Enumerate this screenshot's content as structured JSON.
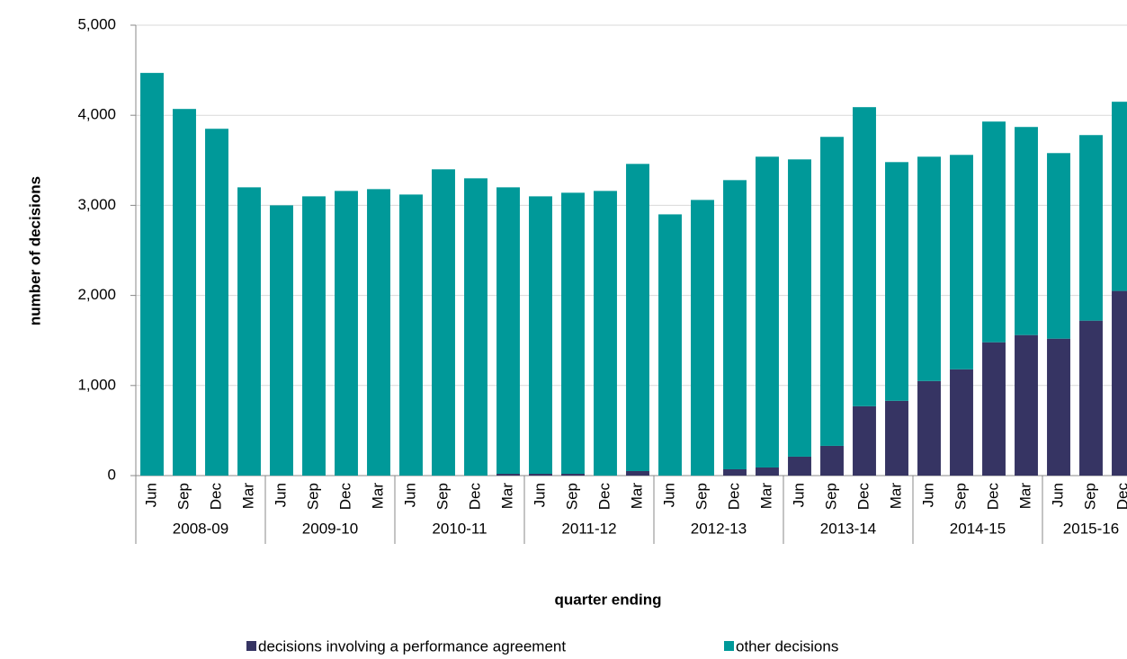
{
  "chart_data": {
    "type": "stacked_bar",
    "x_label": "quarter ending",
    "y_label": "number of decisions",
    "groups": [
      {
        "label": "2008-09",
        "categories": [
          "Jun",
          "Sep",
          "Dec",
          "Mar"
        ]
      },
      {
        "label": "2009-10",
        "categories": [
          "Jun",
          "Sep",
          "Dec",
          "Mar"
        ]
      },
      {
        "label": "2010-11",
        "categories": [
          "Jun",
          "Sep",
          "Dec",
          "Mar"
        ]
      },
      {
        "label": "2011-12",
        "categories": [
          "Jun",
          "Sep",
          "Dec",
          "Mar"
        ]
      },
      {
        "label": "2012-13",
        "categories": [
          "Jun",
          "Sep",
          "Dec",
          "Mar"
        ]
      },
      {
        "label": "2013-14",
        "categories": [
          "Jun",
          "Sep",
          "Dec",
          "Mar"
        ]
      },
      {
        "label": "2014-15",
        "categories": [
          "Jun",
          "Sep",
          "Dec",
          "Mar"
        ]
      },
      {
        "label": "2015-16",
        "categories": [
          "Jun",
          "Sep",
          "Dec"
        ]
      }
    ],
    "series": [
      {
        "name": "decisions involving a performance agreement",
        "color": "#363463",
        "values": [
          0,
          0,
          0,
          0,
          0,
          0,
          0,
          0,
          0,
          0,
          0,
          20,
          20,
          20,
          0,
          50,
          0,
          0,
          70,
          90,
          210,
          330,
          770,
          830,
          1050,
          1180,
          1480,
          1560,
          1520,
          1720,
          2050
        ]
      },
      {
        "name": "other decisions",
        "color": "#009999",
        "values": [
          4470,
          4070,
          3850,
          3200,
          3000,
          3100,
          3160,
          3180,
          3120,
          3400,
          3300,
          3180,
          3080,
          3120,
          3160,
          3410,
          2900,
          3060,
          3210,
          3450,
          3300,
          3430,
          3320,
          2650,
          2490,
          2380,
          2450,
          2310,
          2060,
          2060,
          2100
        ]
      }
    ],
    "ylim": [
      0,
      5000
    ],
    "yticks": [
      0,
      {
        "value": 1000,
        "label": "1,000"
      },
      {
        "value": 2000,
        "label": "2,000"
      },
      {
        "value": 3000,
        "label": "3,000"
      },
      {
        "value": 4000,
        "label": "4,000"
      },
      {
        "value": 5000,
        "label": "5,000"
      }
    ],
    "grid": true
  }
}
